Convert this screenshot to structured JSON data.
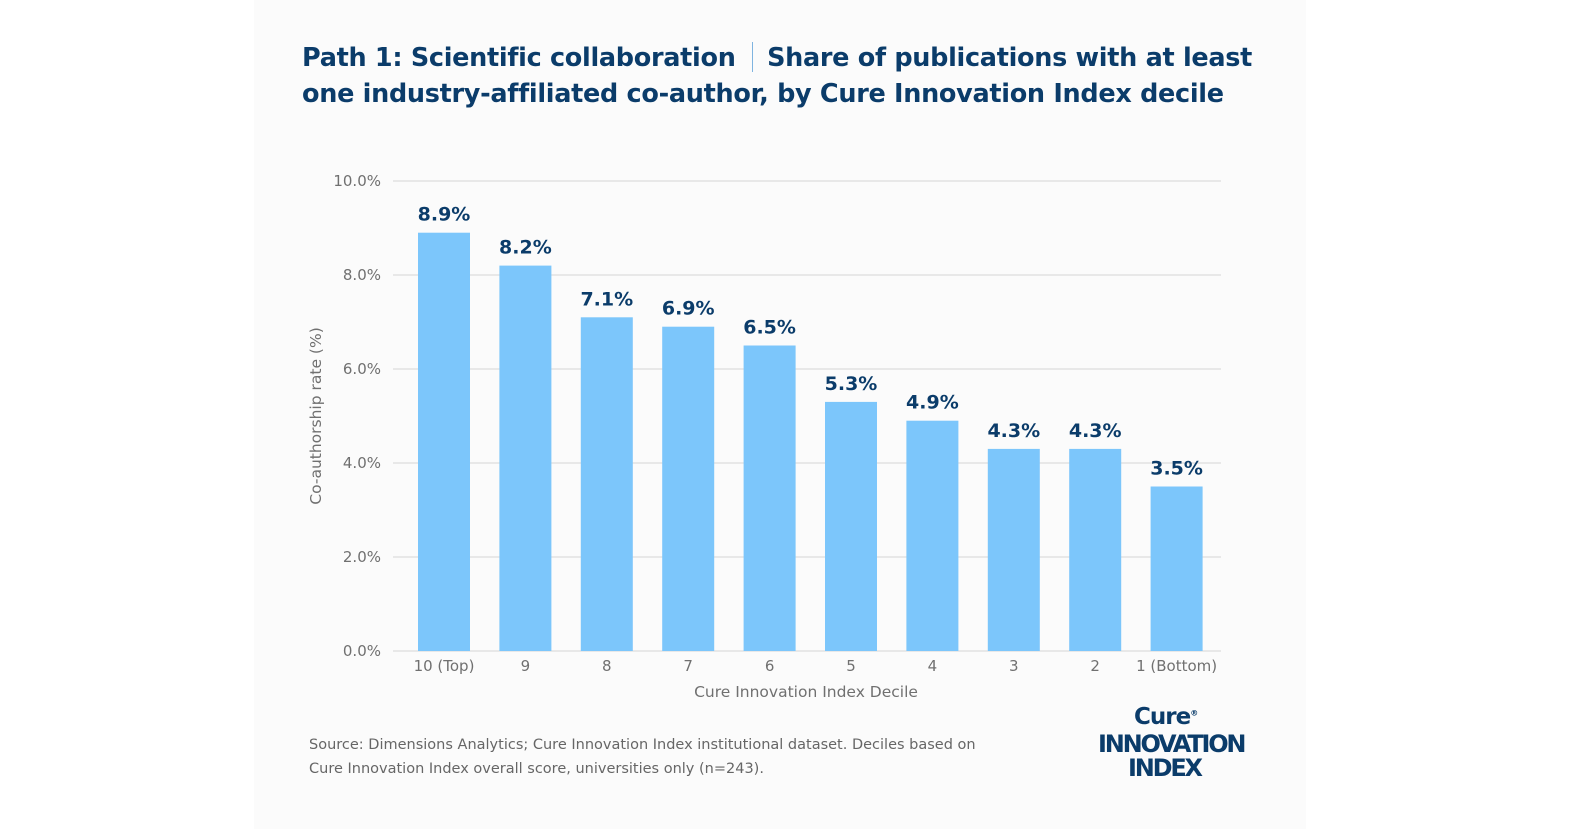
{
  "header": {
    "title_part1": "Path 1: Scientific collaboration",
    "title_part2": "Share of publications with at least one industry-affiliated co-author, by Cure Innovation Index decile"
  },
  "chart_data": {
    "type": "bar",
    "categories": [
      "10 (Top)",
      "9",
      "8",
      "7",
      "6",
      "5",
      "4",
      "3",
      "2",
      "1 (Bottom)"
    ],
    "values": [
      8.9,
      8.2,
      7.1,
      6.9,
      6.5,
      5.3,
      4.9,
      4.3,
      4.3,
      3.5
    ],
    "value_labels": [
      "8.9%",
      "8.2%",
      "7.1%",
      "6.9%",
      "6.5%",
      "5.3%",
      "4.9%",
      "4.3%",
      "4.3%",
      "3.5%"
    ],
    "xlabel": "Cure Innovation Index Decile",
    "ylabel": "Co-authorship rate (%)",
    "ylim": [
      0,
      10
    ],
    "yticks": [
      0,
      2,
      4,
      6,
      8,
      10
    ],
    "ytick_labels": [
      "0.0%",
      "2.0%",
      "4.0%",
      "6.0%",
      "8.0%",
      "10.0%"
    ],
    "grid": true,
    "bar_color": "#7cc6fb",
    "label_color": "#0b3c6a"
  },
  "footer": {
    "source": "Source: Dimensions Analytics; Cure Innovation Index institutional dataset. Deciles based on Cure Innovation Index overall score, universities only (n=243).",
    "logo_line1": "Cure",
    "logo_line2": "INNOVATION",
    "logo_line3": "INDEX"
  }
}
